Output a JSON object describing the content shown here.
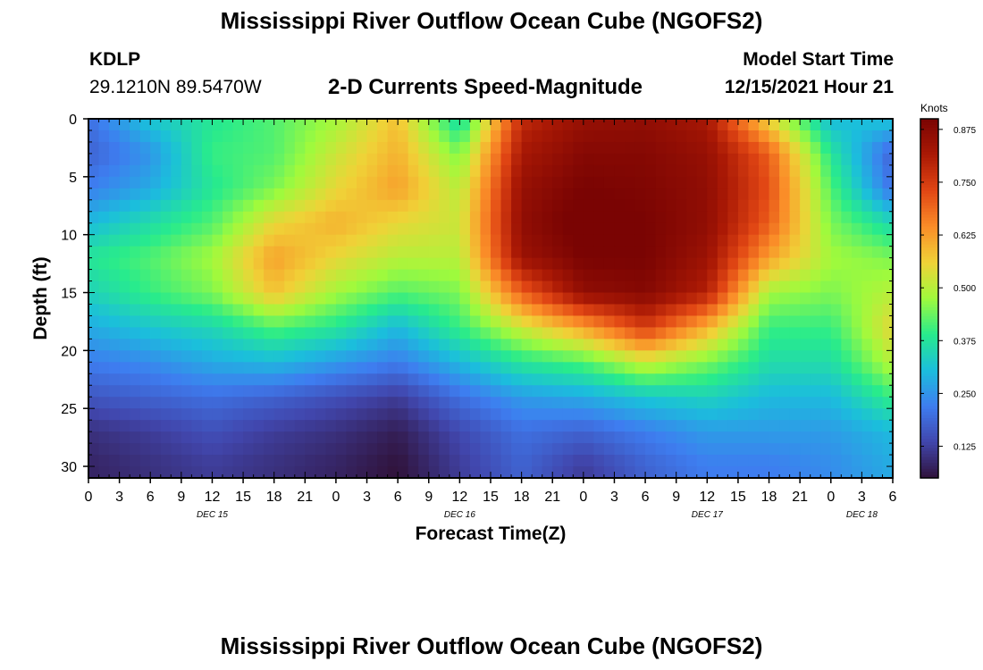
{
  "page": {
    "title": "Mississippi River Outflow Ocean Cube (NGOFS2)",
    "title_repeat": "Mississippi River Outflow Ocean Cube (NGOFS2)"
  },
  "station": {
    "id": "KDLP",
    "coordinates": "29.1210N  89.5470W"
  },
  "model": {
    "label": "Model Start Time",
    "start": "12/15/2021 Hour 21"
  },
  "chart_data": {
    "type": "heatmap",
    "title": "2-D Currents Speed-Magnitude",
    "xlabel": "Forecast Time(Z)",
    "ylabel": "Depth (ft)",
    "x_tick_labels": [
      "0",
      "3",
      "6",
      "9",
      "12",
      "15",
      "18",
      "21",
      "0",
      "3",
      "6",
      "9",
      "12",
      "15",
      "18",
      "21",
      "0",
      "3",
      "6",
      "9",
      "12",
      "15",
      "18",
      "21",
      "0",
      "3",
      "6"
    ],
    "x_hours": [
      0,
      3,
      6,
      9,
      12,
      15,
      18,
      21,
      24,
      27,
      30,
      33,
      36,
      39,
      42,
      45,
      48,
      51,
      54,
      57,
      60,
      63,
      66,
      69,
      72,
      75,
      78
    ],
    "date_labels": [
      {
        "label": "DEC 15",
        "hour": 12
      },
      {
        "label": "DEC 16",
        "hour": 36
      },
      {
        "label": "DEC 17",
        "hour": 60
      },
      {
        "label": "DEC 18",
        "hour": 75
      }
    ],
    "xlim": [
      0,
      78
    ],
    "ylim": [
      0,
      31
    ],
    "y_ticks": [
      0,
      5,
      10,
      15,
      20,
      25,
      30
    ],
    "colorbar": {
      "label": "Knots",
      "ticks": [
        "0.125",
        "0.250",
        "0.375",
        "0.500",
        "0.625",
        "0.750",
        "0.875"
      ],
      "tick_values": [
        0.125,
        0.25,
        0.375,
        0.5,
        0.625,
        0.75,
        0.875
      ],
      "range": [
        0.05,
        0.9
      ]
    },
    "grid_depths_ft": [
      0,
      3,
      6,
      9,
      12,
      15,
      18,
      21,
      24,
      27,
      30
    ],
    "grid_hours": [
      0,
      6,
      12,
      18,
      24,
      30,
      36,
      42,
      48,
      54,
      60,
      66,
      72,
      78
    ],
    "values_knots": [
      [
        0.2,
        0.32,
        0.38,
        0.42,
        0.48,
        0.58,
        0.35,
        0.78,
        0.85,
        0.86,
        0.82,
        0.55,
        0.3,
        0.32
      ],
      [
        0.18,
        0.25,
        0.4,
        0.42,
        0.52,
        0.6,
        0.45,
        0.82,
        0.88,
        0.88,
        0.85,
        0.7,
        0.38,
        0.18
      ],
      [
        0.22,
        0.28,
        0.38,
        0.45,
        0.55,
        0.62,
        0.5,
        0.85,
        0.9,
        0.89,
        0.86,
        0.72,
        0.42,
        0.2
      ],
      [
        0.3,
        0.36,
        0.42,
        0.55,
        0.6,
        0.55,
        0.52,
        0.86,
        0.92,
        0.9,
        0.86,
        0.7,
        0.45,
        0.35
      ],
      [
        0.38,
        0.42,
        0.48,
        0.62,
        0.55,
        0.5,
        0.5,
        0.84,
        0.9,
        0.9,
        0.84,
        0.62,
        0.48,
        0.45
      ],
      [
        0.34,
        0.4,
        0.45,
        0.58,
        0.48,
        0.42,
        0.45,
        0.7,
        0.86,
        0.88,
        0.8,
        0.48,
        0.45,
        0.5
      ],
      [
        0.28,
        0.32,
        0.35,
        0.42,
        0.38,
        0.3,
        0.4,
        0.52,
        0.62,
        0.75,
        0.6,
        0.4,
        0.4,
        0.55
      ],
      [
        0.22,
        0.24,
        0.28,
        0.3,
        0.26,
        0.22,
        0.3,
        0.38,
        0.42,
        0.52,
        0.45,
        0.36,
        0.36,
        0.5
      ],
      [
        0.16,
        0.18,
        0.2,
        0.18,
        0.15,
        0.12,
        0.2,
        0.26,
        0.28,
        0.32,
        0.34,
        0.3,
        0.3,
        0.4
      ],
      [
        0.1,
        0.12,
        0.15,
        0.12,
        0.1,
        0.07,
        0.14,
        0.2,
        0.18,
        0.22,
        0.26,
        0.26,
        0.26,
        0.3
      ],
      [
        0.08,
        0.1,
        0.12,
        0.1,
        0.08,
        0.05,
        0.12,
        0.18,
        0.12,
        0.18,
        0.22,
        0.22,
        0.24,
        0.28
      ]
    ]
  }
}
